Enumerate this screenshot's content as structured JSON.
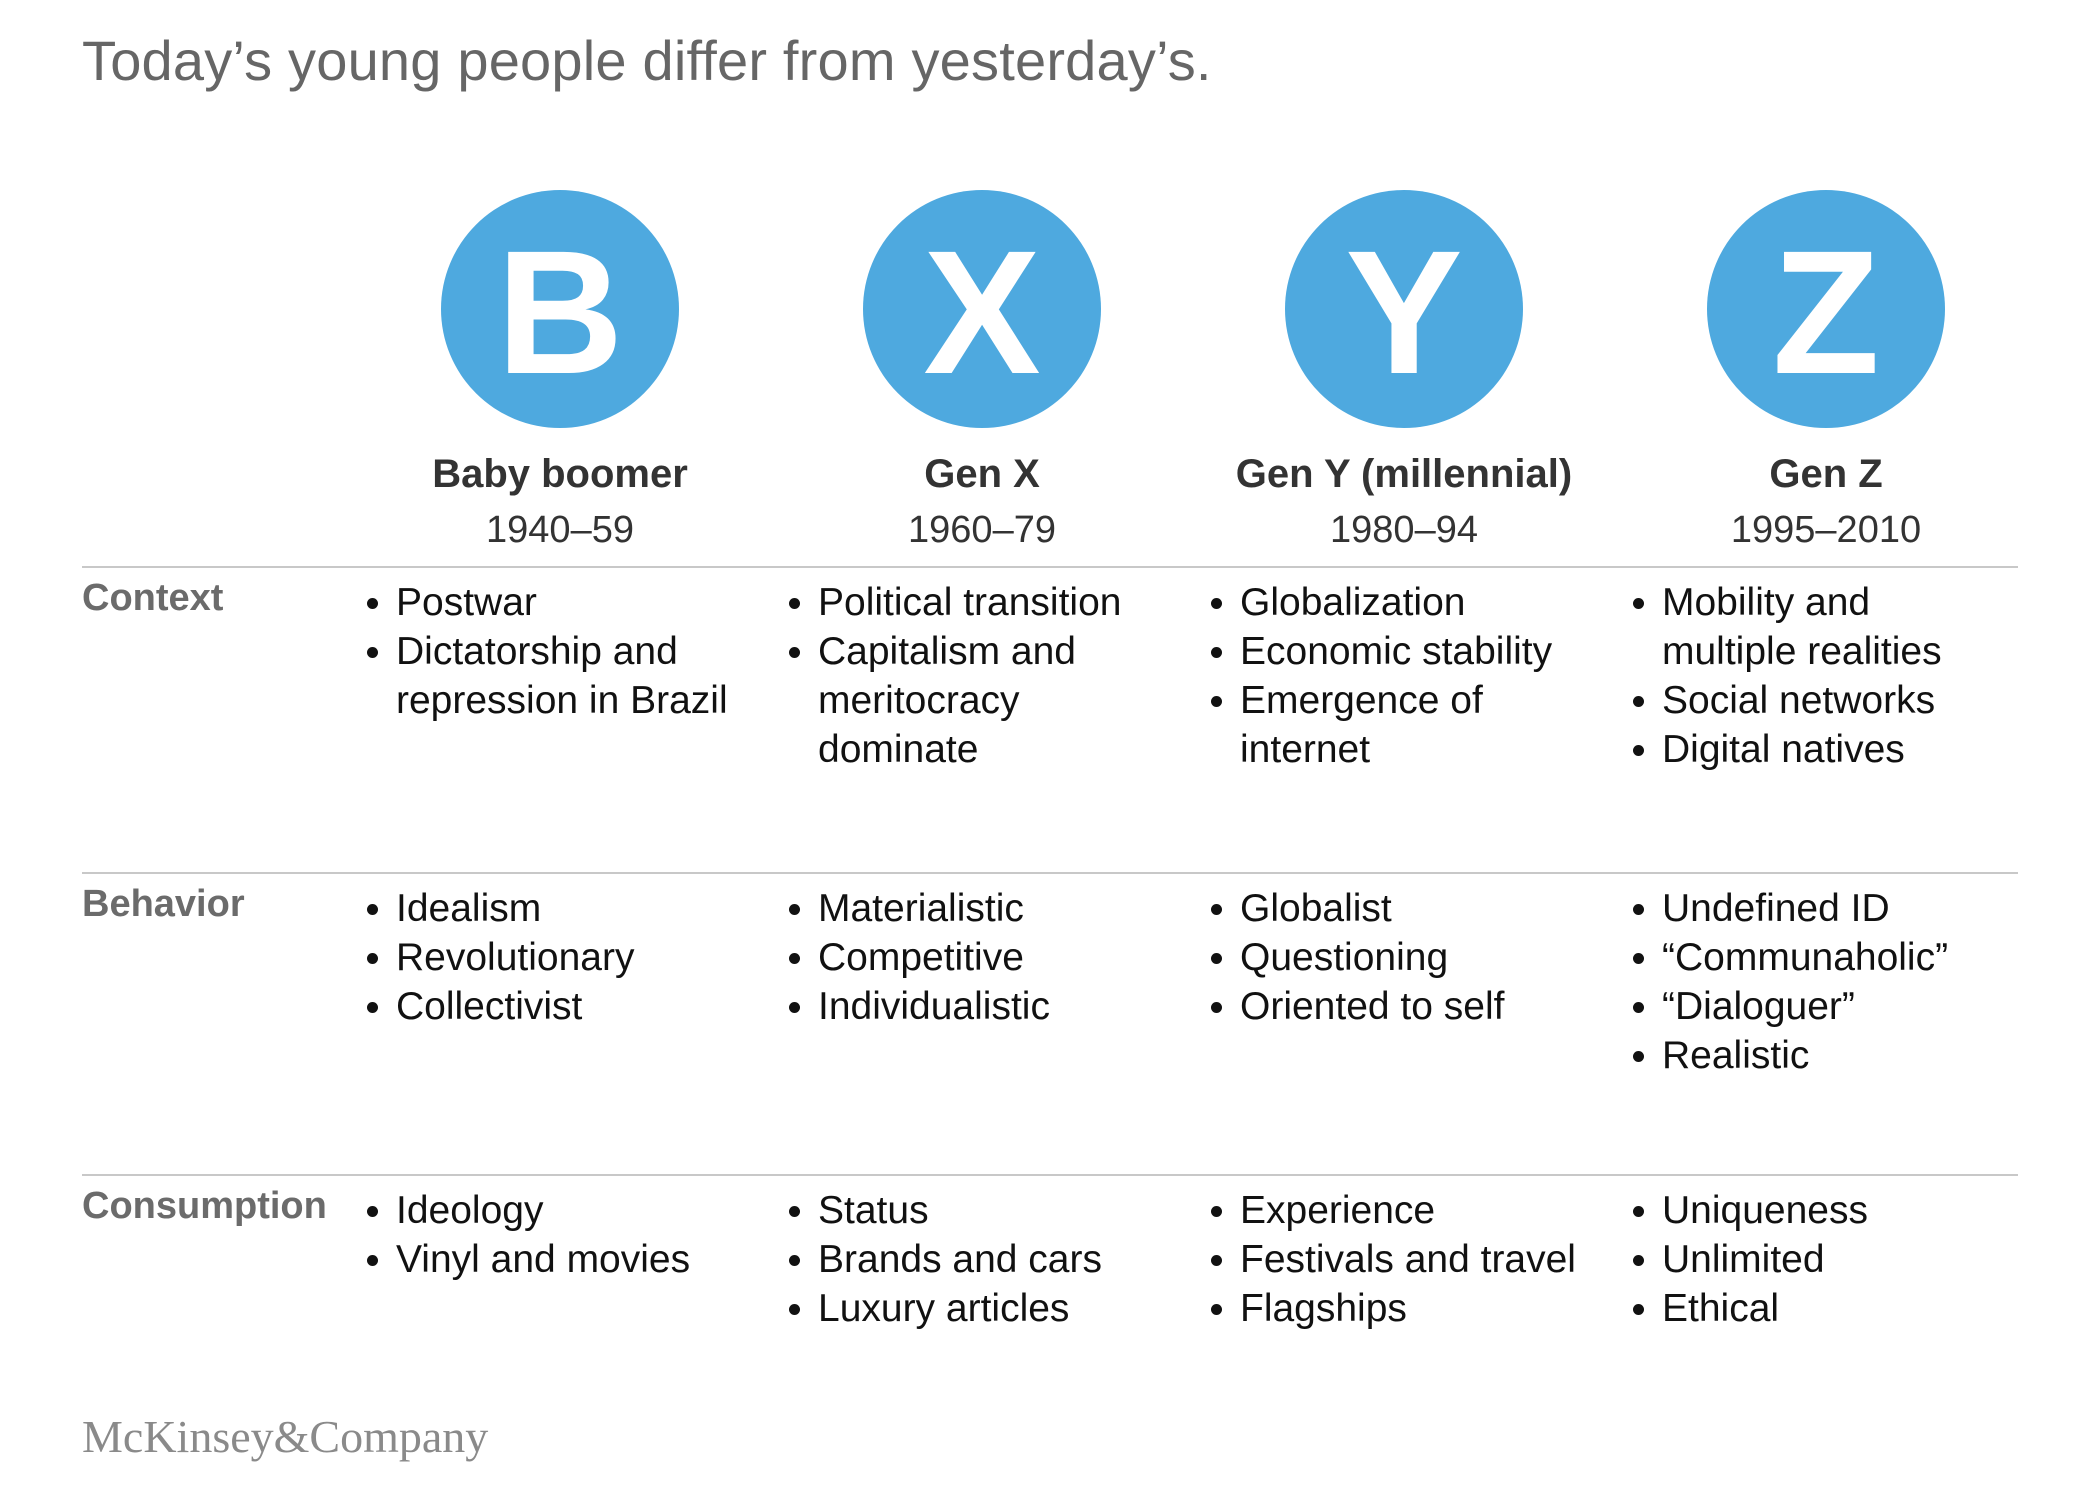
{
  "title": "Today’s young people differ from yesterday’s.",
  "accent_color": "#4ea9df",
  "generations": [
    {
      "letter": "B",
      "name": "Baby boomer",
      "years": "1940–59"
    },
    {
      "letter": "X",
      "name": "Gen X",
      "years": "1960–79"
    },
    {
      "letter": "Y",
      "name": "Gen Y (millennial)",
      "years": "1980–94"
    },
    {
      "letter": "Z",
      "name": "Gen Z",
      "years": "1995–2010"
    }
  ],
  "rows": [
    {
      "label": "Context",
      "cells": [
        [
          "Postwar",
          "Dictatorship and",
          "repression in Brazil"
        ],
        [
          "Political transition",
          "Capitalism and",
          "meritocracy",
          "dominate"
        ],
        [
          "Globalization",
          "Economic stability",
          "Emergence of",
          "internet"
        ],
        [
          "Mobility and",
          "multiple realities",
          "Social networks",
          "Digital natives"
        ]
      ]
    },
    {
      "label": "Behavior",
      "cells": [
        [
          "Idealism",
          "Revolutionary",
          "Collectivist"
        ],
        [
          "Materialistic",
          "Competitive",
          "Individualistic"
        ],
        [
          "Globalist",
          "Questioning",
          "Oriented to self"
        ],
        [
          "Undefined ID",
          "“Communaholic”",
          "“Dialoguer”",
          "Realistic"
        ]
      ]
    },
    {
      "label": "Consumption",
      "cells": [
        [
          "Ideology",
          "Vinyl and movies"
        ],
        [
          "Status",
          "Brands and cars",
          "Luxury articles"
        ],
        [
          "Experience",
          "Festivals and travel",
          "Flagships"
        ],
        [
          "Uniqueness",
          "Unlimited",
          "Ethical"
        ]
      ]
    }
  ],
  "footer": {
    "logo_text": "McKinsey&Company"
  }
}
